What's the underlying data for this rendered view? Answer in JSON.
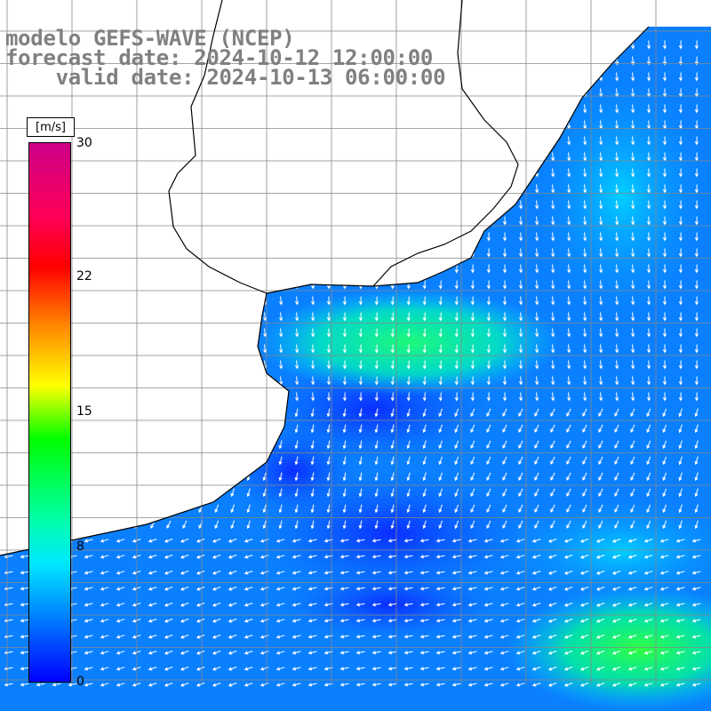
{
  "title": {
    "line1": "modelo GEFS-WAVE (NCEP)",
    "line2": "forecast date: 2024-10-12 12:00:00",
    "line3": "    valid date: 2024-10-13 06:00:00"
  },
  "colorbar": {
    "unit": "[m/s]",
    "ticks": [
      "30",
      "22",
      "15",
      "8",
      "0"
    ],
    "tick_values": [
      30,
      22,
      15,
      8,
      0
    ],
    "range": [
      0,
      30
    ]
  },
  "map": {
    "field": "wind speed",
    "grid": true,
    "colors": {
      "ocean_low": "#0a3cff",
      "ocean_mid": "#0a8cff",
      "ocean_high": "#00e0ff",
      "max_zone": "#20ff70",
      "land": "#ffffff",
      "coast": "#000000",
      "grid": "#888888",
      "arrow": "#ffffff"
    }
  }
}
